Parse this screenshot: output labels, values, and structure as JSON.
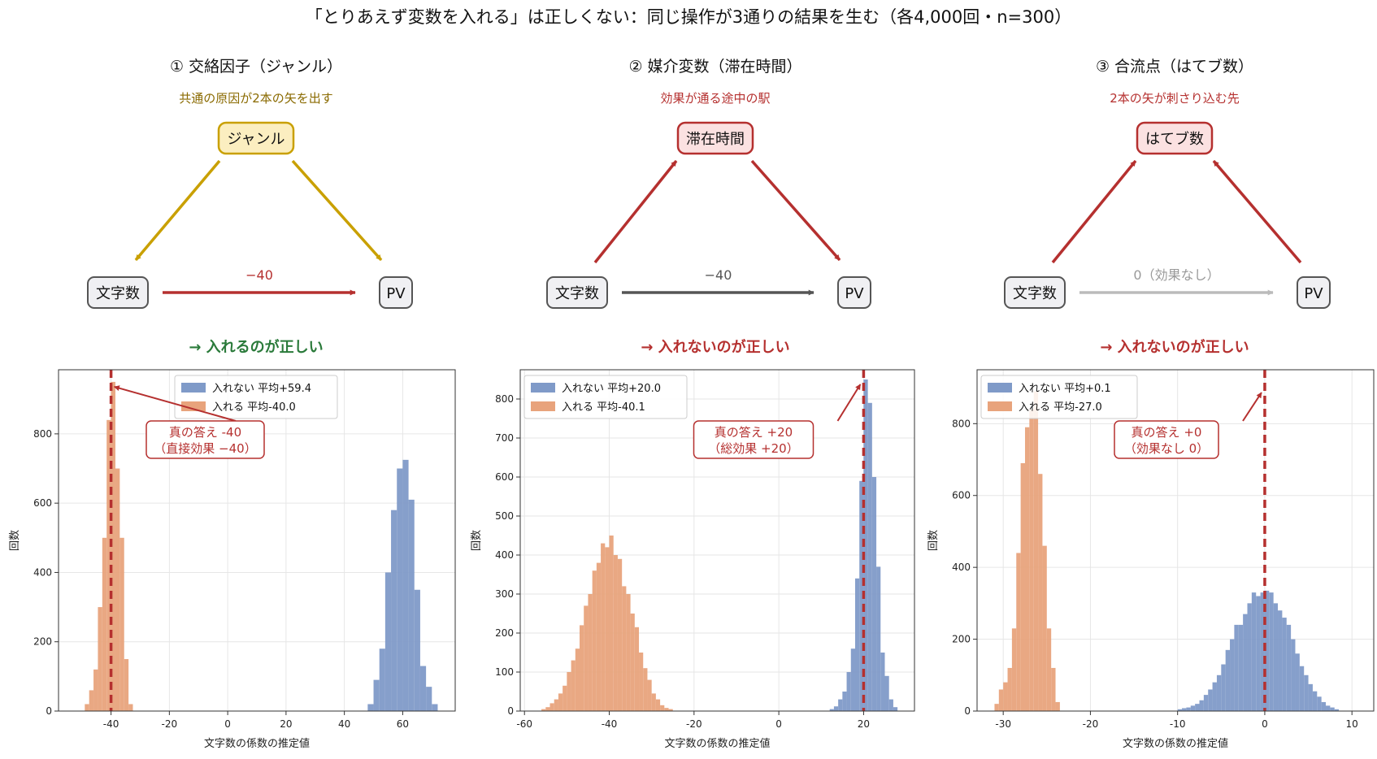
{
  "figure": {
    "title": "「とりあえず変数を入れる」は正しくない：同じ操作が3通りの結果を生む（各4,000回・n=300）"
  },
  "colors": {
    "not_included": "#7f9ac8",
    "included": "#e8a37c",
    "truth_line": "#b5302f",
    "correct_green": "#2a7a3a",
    "wrong_red": "#b5302f",
    "confounder_arrow": "#c9a000",
    "path_red": "#b5302f",
    "path_dark": "#555555",
    "path_gray": "#bbbbbb",
    "node_fill": "#f0f0f3",
    "node_stroke": "#555555"
  },
  "panels": [
    {
      "header": "① 交絡因子（ジャンル）",
      "subheader": "共通の原因が2本の矢を出す",
      "subheader_color": "#8a6a00",
      "nodes": {
        "third": "ジャンル",
        "source": "文字数",
        "target": "PV"
      },
      "third_style": {
        "fill": "#fbeec0",
        "stroke": "#c9a000"
      },
      "edge_style": "confounder",
      "direct_label": "−40",
      "direct_label_color": "#b5302f",
      "direct_color": "#b5302f",
      "verdict": "→ 入れるのが正しい",
      "verdict_color": "#2a7a3a",
      "legend": {
        "not": "入れない  平均+59.4",
        "inc": "入れる    平均-40.0"
      },
      "annotation": [
        "真の答え -40",
        "（直接効果 −40）"
      ],
      "xlabel": "文字数の係数の推定値",
      "ylabel": "回数"
    },
    {
      "header": "② 媒介変数（滞在時間）",
      "subheader": "効果が通る途中の駅",
      "subheader_color": "#b5302f",
      "nodes": {
        "third": "滞在時間",
        "source": "文字数",
        "target": "PV"
      },
      "third_style": {
        "fill": "#fbe1e1",
        "stroke": "#b5302f"
      },
      "edge_style": "mediator",
      "direct_label": "−40",
      "direct_label_color": "#555555",
      "direct_color": "#555555",
      "verdict": "→ 入れないのが正しい",
      "verdict_color": "#b5302f",
      "legend": {
        "not": "入れない  平均+20.0",
        "inc": "入れる    平均-40.1"
      },
      "annotation": [
        "真の答え +20",
        "（総効果 +20）"
      ],
      "xlabel": "文字数の係数の推定値",
      "ylabel": "回数"
    },
    {
      "header": "③ 合流点（はてブ数）",
      "subheader": "2本の矢が刺さり込む先",
      "subheader_color": "#b5302f",
      "nodes": {
        "third": "はてブ数",
        "source": "文字数",
        "target": "PV"
      },
      "third_style": {
        "fill": "#fbe1e1",
        "stroke": "#b5302f"
      },
      "edge_style": "collider",
      "direct_label": "0（効果なし）",
      "direct_label_color": "#999999",
      "direct_color": "#bbbbbb",
      "verdict": "→ 入れないのが正しい",
      "verdict_color": "#b5302f",
      "legend": {
        "not": "入れない  平均+0.1",
        "inc": "入れる    平均-27.0"
      },
      "annotation": [
        "真の答え +0",
        "（効果なし 0）"
      ],
      "xlabel": "文字数の係数の推定値",
      "ylabel": "回数"
    }
  ],
  "chart_data": [
    {
      "type": "bar",
      "xlim": [
        -58,
        78
      ],
      "ylim": [
        0,
        985
      ],
      "xticks": [
        -40,
        -20,
        0,
        20,
        40,
        60
      ],
      "yticks": [
        0,
        200,
        400,
        600,
        800
      ],
      "truth": -40,
      "grid": true,
      "legend_position": "top-center",
      "series": [
        {
          "name": "入れない  平均+59.4",
          "bin_width": 2,
          "bins": [
            [
              48,
              20
            ],
            [
              50,
              90
            ],
            [
              52,
              180
            ],
            [
              54,
              400
            ],
            [
              56,
              580
            ],
            [
              58,
              700
            ],
            [
              60,
              725
            ],
            [
              62,
              610
            ],
            [
              64,
              350
            ],
            [
              66,
              130
            ],
            [
              68,
              70
            ],
            [
              70,
              20
            ]
          ]
        },
        {
          "name": "入れる    平均-40.0",
          "bin_width": 1.5,
          "bins": [
            [
              -49,
              20
            ],
            [
              -47.5,
              60
            ],
            [
              -46,
              120
            ],
            [
              -44.5,
              300
            ],
            [
              -43,
              500
            ],
            [
              -41.5,
              840
            ],
            [
              -40,
              950
            ],
            [
              -38.5,
              700
            ],
            [
              -37,
              500
            ],
            [
              -35.5,
              150
            ],
            [
              -34,
              20
            ]
          ]
        }
      ]
    },
    {
      "type": "bar",
      "xlim": [
        -61,
        32
      ],
      "ylim": [
        0,
        875
      ],
      "xticks": [
        -60,
        -40,
        -20,
        0,
        20
      ],
      "yticks": [
        0,
        100,
        200,
        300,
        400,
        500,
        600,
        700,
        800
      ],
      "truth": 20,
      "grid": true,
      "legend_position": "top-left",
      "series": [
        {
          "name": "入れない  平均+20.0",
          "bin_width": 1,
          "bins": [
            [
              12,
              5
            ],
            [
              13,
              12
            ],
            [
              14,
              30
            ],
            [
              15,
              50
            ],
            [
              16,
              100
            ],
            [
              17,
              160
            ],
            [
              18,
              340
            ],
            [
              19,
              590
            ],
            [
              20,
              850
            ],
            [
              21,
              790
            ],
            [
              22,
              600
            ],
            [
              23,
              370
            ],
            [
              24,
              150
            ],
            [
              25,
              90
            ],
            [
              26,
              30
            ],
            [
              27,
              10
            ]
          ]
        },
        {
          "name": "入れる    平均-40.1",
          "bin_width": 1,
          "bins": [
            [
              -56,
              5
            ],
            [
              -55,
              10
            ],
            [
              -54,
              20
            ],
            [
              -53,
              30
            ],
            [
              -52,
              45
            ],
            [
              -51,
              65
            ],
            [
              -50,
              100
            ],
            [
              -49,
              130
            ],
            [
              -48,
              160
            ],
            [
              -47,
              220
            ],
            [
              -46,
              270
            ],
            [
              -45,
              300
            ],
            [
              -44,
              360
            ],
            [
              -43,
              380
            ],
            [
              -42,
              430
            ],
            [
              -41,
              420
            ],
            [
              -40,
              450
            ],
            [
              -39,
              400
            ],
            [
              -38,
              390
            ],
            [
              -37,
              320
            ],
            [
              -36,
              300
            ],
            [
              -35,
              250
            ],
            [
              -34,
              215
            ],
            [
              -33,
              150
            ],
            [
              -32,
              110
            ],
            [
              -31,
              80
            ],
            [
              -30,
              45
            ],
            [
              -29,
              30
            ],
            [
              -28,
              15
            ],
            [
              -27,
              8
            ],
            [
              -26,
              5
            ]
          ]
        }
      ]
    },
    {
      "type": "bar",
      "xlim": [
        -33,
        12.5
      ],
      "ylim": [
        0,
        950
      ],
      "xticks": [
        -30,
        -20,
        -10,
        0,
        10
      ],
      "yticks": [
        0,
        200,
        400,
        600,
        800
      ],
      "truth": 0,
      "grid": true,
      "legend_position": "top-left",
      "series": [
        {
          "name": "入れない  平均+0.1",
          "bin_width": 0.5,
          "bins": [
            [
              -10,
              5
            ],
            [
              -9.5,
              8
            ],
            [
              -9,
              10
            ],
            [
              -8.5,
              15
            ],
            [
              -8,
              20
            ],
            [
              -7.5,
              30
            ],
            [
              -7,
              45
            ],
            [
              -6.5,
              60
            ],
            [
              -6,
              80
            ],
            [
              -5.5,
              100
            ],
            [
              -5,
              130
            ],
            [
              -4.5,
              170
            ],
            [
              -4,
              200
            ],
            [
              -3.5,
              240
            ],
            [
              -3,
              240
            ],
            [
              -2.5,
              270
            ],
            [
              -2,
              300
            ],
            [
              -1.5,
              330
            ],
            [
              -1,
              320
            ],
            [
              -0.5,
              330
            ],
            [
              0,
              335
            ],
            [
              0.5,
              330
            ],
            [
              1,
              300
            ],
            [
              1.5,
              280
            ],
            [
              2,
              260
            ],
            [
              2.5,
              240
            ],
            [
              3,
              200
            ],
            [
              3.5,
              160
            ],
            [
              4,
              125
            ],
            [
              4.5,
              100
            ],
            [
              5,
              75
            ],
            [
              5.5,
              55
            ],
            [
              6,
              40
            ],
            [
              6.5,
              25
            ],
            [
              7,
              15
            ],
            [
              7.5,
              10
            ],
            [
              8,
              5
            ]
          ]
        },
        {
          "name": "入れる    平均-27.0",
          "bin_width": 0.5,
          "bins": [
            [
              -31,
              20
            ],
            [
              -30.5,
              60
            ],
            [
              -30,
              80
            ],
            [
              -29.5,
              120
            ],
            [
              -29,
              230
            ],
            [
              -28.5,
              440
            ],
            [
              -28,
              690
            ],
            [
              -27.5,
              790
            ],
            [
              -27,
              840
            ],
            [
              -26.5,
              890
            ],
            [
              -26,
              660
            ],
            [
              -25.5,
              460
            ],
            [
              -25,
              230
            ],
            [
              -24.5,
              120
            ],
            [
              -24,
              25
            ]
          ]
        }
      ]
    }
  ]
}
